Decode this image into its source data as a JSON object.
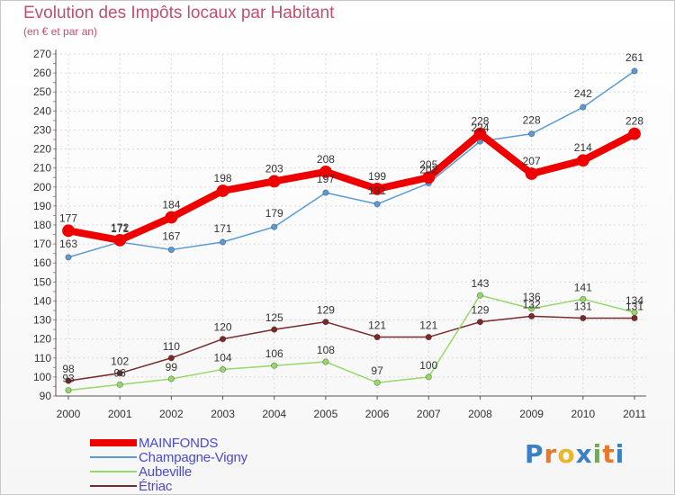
{
  "title": "Evolution des Impôts locaux par Habitant",
  "subtitle": "(en € et par an)",
  "logo": {
    "letters": [
      "P",
      "r",
      "o",
      "x",
      "i",
      "t",
      "i"
    ],
    "colors": [
      "#3b7fc4",
      "#e8762b",
      "#e8b72b",
      "#3b7fc4",
      "#6ab04c",
      "#e8762b",
      "#3b7fc4"
    ]
  },
  "chart_data": {
    "type": "line",
    "title": "Evolution des Impôts locaux par Habitant",
    "subtitle": "(en € et par an)",
    "xlabel": "",
    "ylabel": "",
    "ylim": [
      90,
      270
    ],
    "yticks": [
      90,
      100,
      110,
      120,
      130,
      140,
      150,
      160,
      170,
      180,
      190,
      200,
      210,
      220,
      230,
      240,
      250,
      260,
      270
    ],
    "x": [
      "2000",
      "2001",
      "2002",
      "2003",
      "2004",
      "2005",
      "2006",
      "2007",
      "2008",
      "2009",
      "2010",
      "2011"
    ],
    "series": [
      {
        "name": "MAINFONDS",
        "color": "#ee0000",
        "values": [
          177,
          172,
          184,
          198,
          203,
          208,
          199,
          205,
          228,
          207,
          214,
          228
        ]
      },
      {
        "name": "Champagne-Vigny",
        "color": "#5a9bd5",
        "values": [
          163,
          171,
          167,
          171,
          179,
          197,
          191,
          202,
          224,
          228,
          242,
          261
        ]
      },
      {
        "name": "Aubeville",
        "color": "#96d86a",
        "values": [
          93,
          96,
          99,
          104,
          106,
          108,
          97,
          100,
          143,
          136,
          141,
          134
        ]
      },
      {
        "name": "Étriac",
        "color": "#7a2a2a",
        "values": [
          98,
          102,
          110,
          120,
          125,
          129,
          121,
          121,
          129,
          132,
          131,
          131
        ]
      }
    ]
  }
}
